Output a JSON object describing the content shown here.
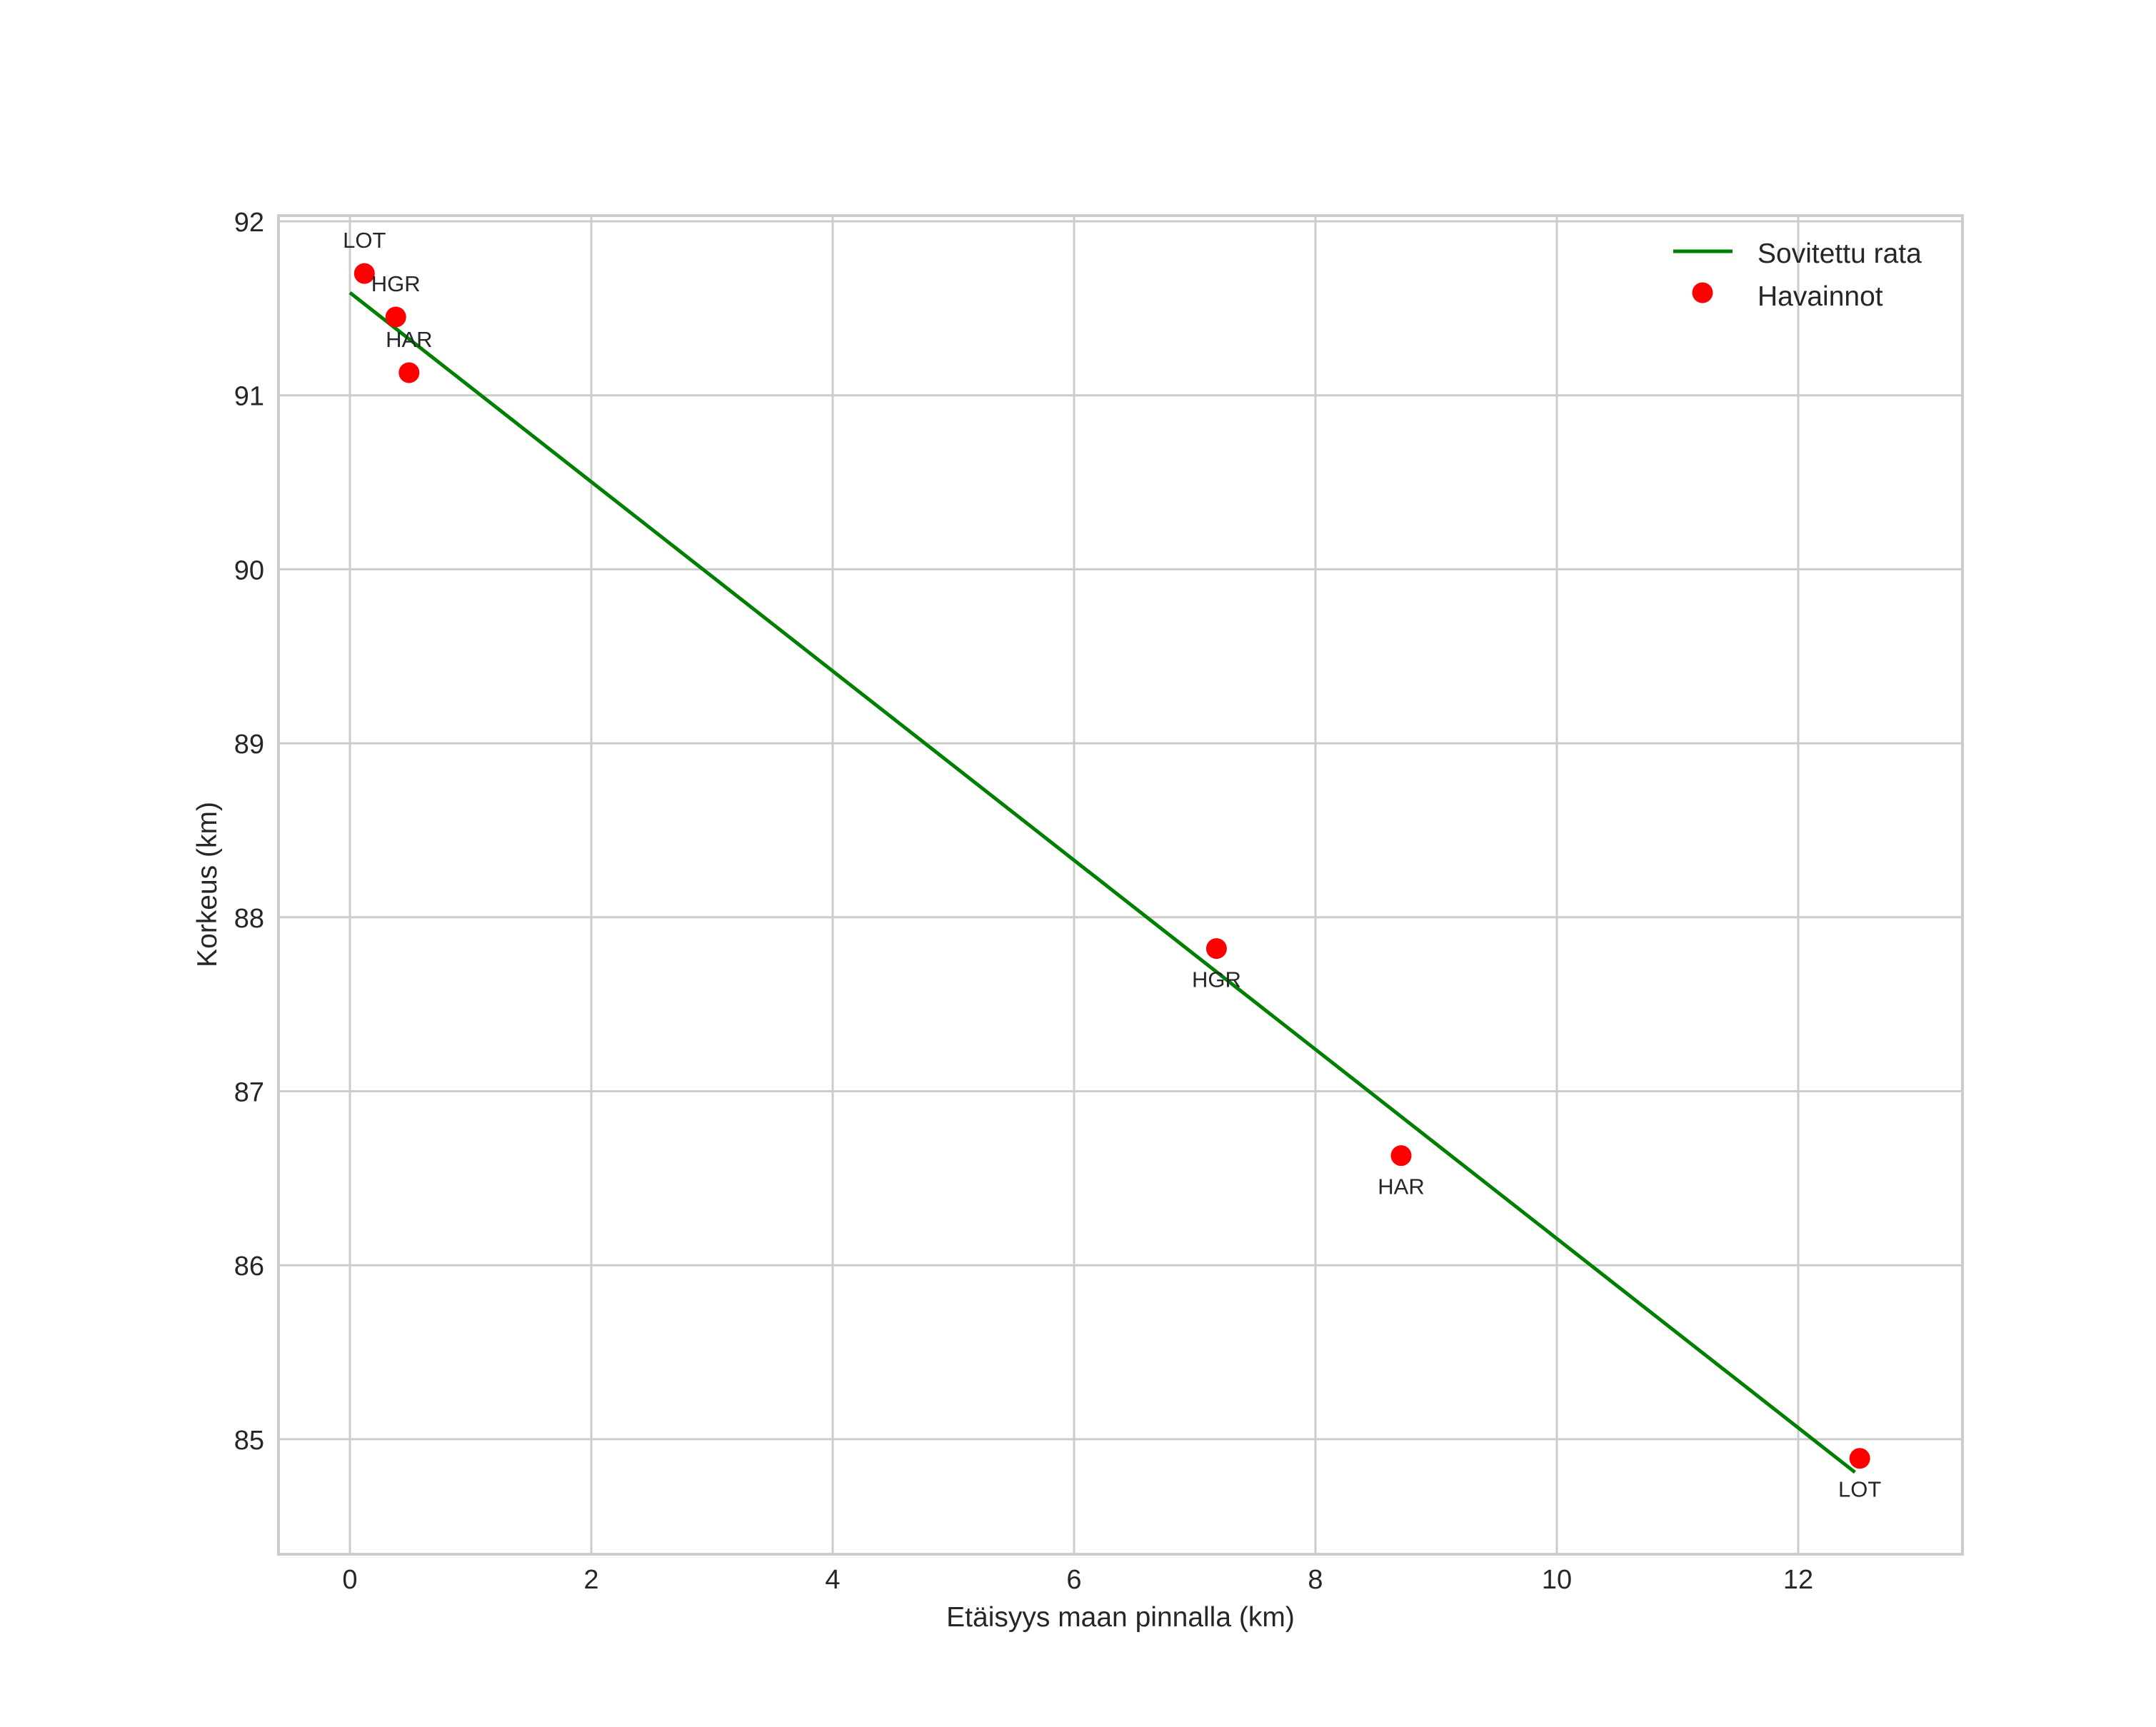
{
  "chart_data": {
    "type": "scatter",
    "title": "",
    "xlabel": "Etäisyys maan pinnalla (km)",
    "ylabel": "Korkeus (km)",
    "xlim": [
      -0.62,
      13.13
    ],
    "ylim": [
      84.47,
      92.05
    ],
    "xticks": [
      0,
      2,
      4,
      6,
      8,
      10,
      12
    ],
    "yticks": [
      85,
      86,
      87,
      88,
      89,
      90,
      91,
      92
    ],
    "grid": true,
    "legend_position": "upper right",
    "series": [
      {
        "name": "Sovitettu rata",
        "type": "line",
        "color": "#008000",
        "x": [
          0.0,
          12.47
        ],
        "y": [
          91.59,
          84.81
        ]
      },
      {
        "name": "Havainnot",
        "type": "scatter",
        "color": "#ff0000",
        "points": [
          {
            "label": "LOT",
            "x": 0.12,
            "y": 91.7,
            "label_pos": "above"
          },
          {
            "label": "HGR",
            "x": 0.38,
            "y": 91.45,
            "label_pos": "above"
          },
          {
            "label": "HAR",
            "x": 0.49,
            "y": 91.13,
            "label_pos": "above"
          },
          {
            "label": "HGR",
            "x": 7.18,
            "y": 87.82,
            "label_pos": "below"
          },
          {
            "label": "HAR",
            "x": 8.71,
            "y": 86.63,
            "label_pos": "below"
          },
          {
            "label": "LOT",
            "x": 12.51,
            "y": 84.89,
            "label_pos": "below"
          }
        ]
      }
    ]
  },
  "legend": {
    "items": [
      {
        "label": "Sovitettu rata",
        "icon": "line-swatch-icon",
        "color": "#008000"
      },
      {
        "label": "Havainnot",
        "icon": "dot-marker-icon",
        "color": "#ff0000"
      }
    ]
  },
  "style": {
    "grid_color": "#cccccc",
    "text_color": "#262626"
  }
}
